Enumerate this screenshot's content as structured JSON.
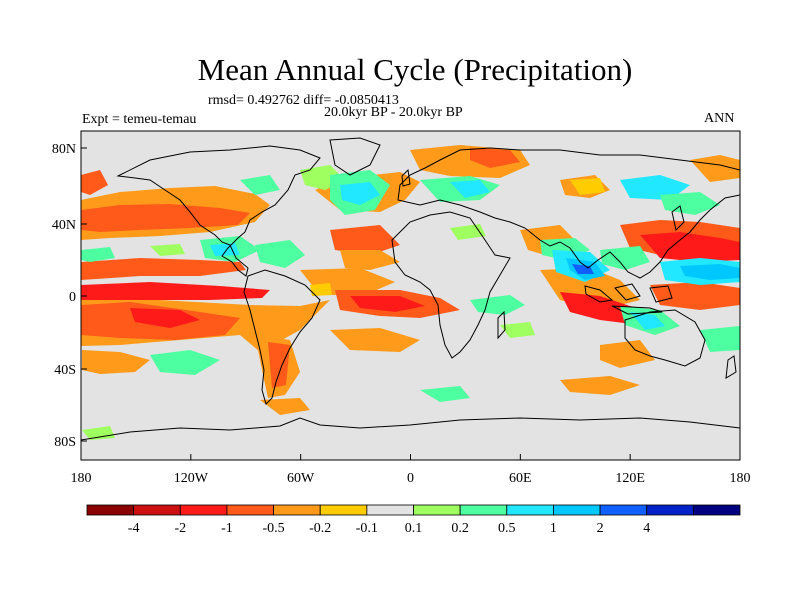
{
  "title": "Mean Annual Cycle (Precipitation)",
  "stats": "rmsd= 0.492762 diff= -0.0850413",
  "experiment": "Expt = temeu-temau",
  "period": "20.0kyr BP - 20.0kyr BP",
  "season": "ANN",
  "map": {
    "lat_ticks": [
      "80N",
      "40N",
      "0",
      "40S",
      "80S"
    ],
    "lon_ticks": [
      "180",
      "120W",
      "60W",
      "0",
      "60E",
      "120E",
      "180"
    ],
    "background_color": "#e3e3e3"
  },
  "colorbar": {
    "colors": [
      "#8b0000",
      "#cc1010",
      "#ff1a1a",
      "#ff5a1a",
      "#ff9a1a",
      "#ffcc00",
      "#e3e3e3",
      "#a0ff60",
      "#4dffa0",
      "#22e8ff",
      "#00c8ff",
      "#1060ff",
      "#0020c8",
      "#000080"
    ],
    "labels": [
      "-4",
      "-2",
      "-1",
      "-0.5",
      "-0.2",
      "-0.1",
      "0.1",
      "0.2",
      "0.5",
      "1",
      "2",
      "4"
    ]
  }
}
